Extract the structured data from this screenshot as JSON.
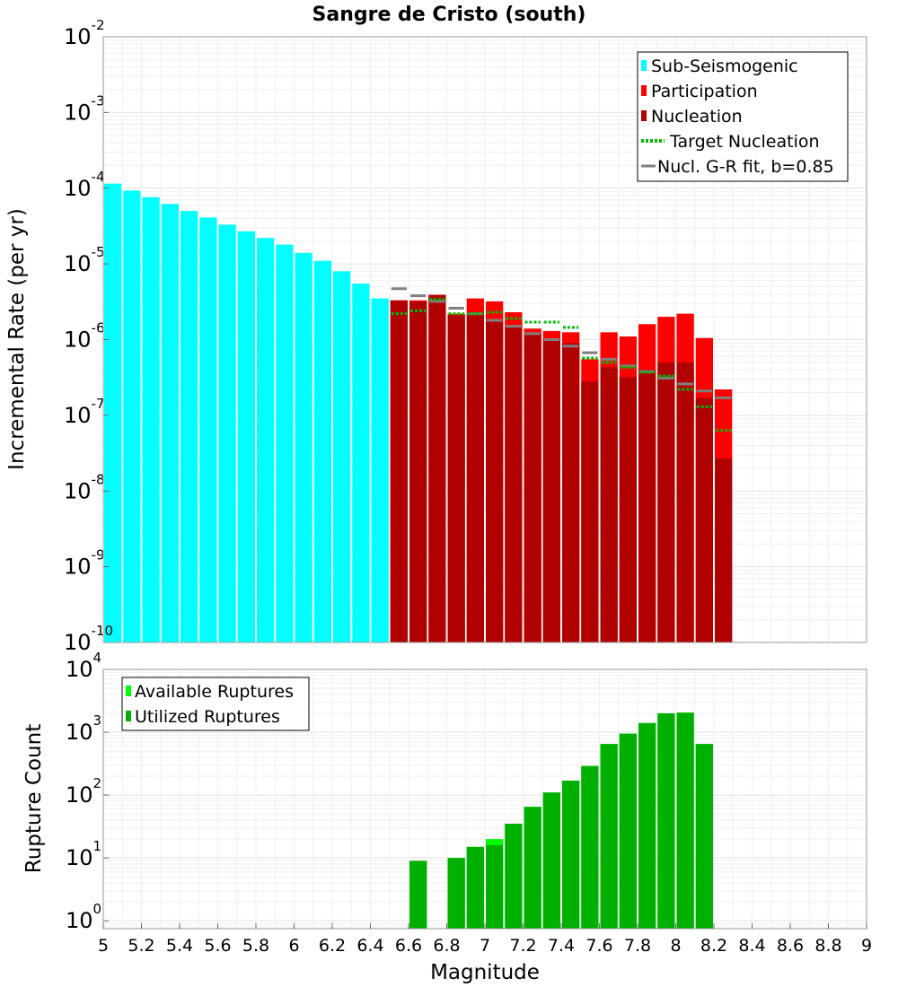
{
  "chart_data": [
    {
      "type": "bar",
      "title": "Sangre de Cristo (south)",
      "xlabel": "",
      "ylabel": "Incremental Rate (per yr)",
      "xlim": [
        5,
        9
      ],
      "ylim": [
        1e-10,
        0.01
      ],
      "yscale": "log",
      "grid": true,
      "legend_position": "top-right",
      "y_tick_labels": [
        "10-10",
        "10-9",
        "10-8",
        "10-7",
        "10-6",
        "10-5",
        "10-4",
        "10-3",
        "10-2"
      ],
      "bin_width": 0.1,
      "series": [
        {
          "name": "Sub-Seismogenic",
          "color": "#00ffff",
          "x": [
            5.05,
            5.15,
            5.25,
            5.35,
            5.45,
            5.55,
            5.65,
            5.75,
            5.85,
            5.95,
            6.05,
            6.15,
            6.25,
            6.35,
            6.45
          ],
          "values": [
            0.000115,
            9.3e-05,
            7.6e-05,
            6.2e-05,
            5e-05,
            4.1e-05,
            3.3e-05,
            2.7e-05,
            2.2e-05,
            1.8e-05,
            1.4e-05,
            1.1e-05,
            8e-06,
            5.5e-06,
            3.5e-06
          ]
        },
        {
          "name": "Participation",
          "color": "#ff0000",
          "x": [
            6.55,
            6.65,
            6.75,
            6.85,
            6.95,
            7.05,
            7.15,
            7.25,
            7.35,
            7.45,
            7.55,
            7.65,
            7.75,
            7.85,
            7.95,
            8.05,
            8.15,
            8.25
          ],
          "values": [
            3.3e-06,
            3.3e-06,
            3.9e-06,
            2.2e-06,
            3.5e-06,
            3.2e-06,
            2.3e-06,
            1.4e-06,
            1.3e-06,
            1.25e-06,
            5.5e-07,
            1.25e-06,
            1.1e-06,
            1.6e-06,
            2e-06,
            2.2e-06,
            1.05e-06,
            2.2e-07
          ]
        },
        {
          "name": "Nucleation",
          "color": "#b00000",
          "x": [
            6.55,
            6.65,
            6.75,
            6.85,
            6.95,
            7.05,
            7.15,
            7.25,
            7.35,
            7.45,
            7.55,
            7.65,
            7.75,
            7.85,
            7.95,
            8.05,
            8.15,
            8.25
          ],
          "values": [
            3.3e-06,
            3.2e-06,
            3.9e-06,
            2.1e-06,
            2.1e-06,
            1.8e-06,
            1.5e-06,
            1.2e-06,
            1e-06,
            9e-07,
            2.8e-07,
            4.3e-07,
            3.2e-07,
            4e-07,
            5e-07,
            5e-07,
            1.7e-07,
            2.7e-08
          ]
        },
        {
          "name": "Target Nucleation",
          "color": "#00bb00",
          "style": "dotted",
          "x": [
            6.55,
            6.65,
            6.75,
            6.85,
            6.95,
            7.05,
            7.15,
            7.25,
            7.35,
            7.45,
            7.55,
            7.65,
            7.75,
            7.85,
            7.95,
            8.05,
            8.15,
            8.25
          ],
          "values": [
            2.2e-06,
            2.4e-06,
            3.4e-06,
            2.2e-06,
            2.2e-06,
            2.3e-06,
            1.9e-06,
            1.7e-06,
            1.7e-06,
            1.45e-06,
            5.7e-07,
            5e-07,
            4.3e-07,
            3.7e-07,
            3.3e-07,
            2.2e-07,
            1.3e-07,
            6.3e-08
          ]
        },
        {
          "name": "Nucl. G-R fit, b=0.85",
          "color": "#808080",
          "x": [
            6.55,
            6.65,
            6.75,
            6.85,
            6.95,
            7.05,
            7.15,
            7.25,
            7.35,
            7.45,
            7.55,
            7.65,
            7.75,
            7.85,
            7.95,
            8.05,
            8.15,
            8.25
          ],
          "values": [
            4.7e-06,
            3.8e-06,
            3.2e-06,
            2.6e-06,
            2.2e-06,
            1.8e-06,
            1.5e-06,
            1.2e-06,
            1e-06,
            8.2e-07,
            6.7e-07,
            5.5e-07,
            4.5e-07,
            3.8e-07,
            3.1e-07,
            2.6e-07,
            2.1e-07,
            1.7e-07
          ]
        }
      ]
    },
    {
      "type": "bar",
      "xlabel": "Magnitude",
      "ylabel": "Rupture Count",
      "xlim": [
        5,
        9
      ],
      "ylim": [
        0.75,
        10000
      ],
      "yscale": "log",
      "grid": true,
      "legend_position": "top-left",
      "y_tick_labels": [
        "100",
        "101",
        "102",
        "103",
        "104"
      ],
      "x_tick_labels": [
        "5",
        "5.2",
        "5.4",
        "5.6",
        "5.8",
        "6",
        "6.2",
        "6.4",
        "6.6",
        "6.8",
        "7",
        "7.2",
        "7.4",
        "7.6",
        "7.8",
        "8",
        "8.2",
        "8.4",
        "8.6",
        "8.8",
        "9"
      ],
      "bin_width": 0.1,
      "series": [
        {
          "name": "Available Ruptures",
          "color": "#00ff00",
          "x": [
            6.65,
            6.85,
            6.95,
            7.05,
            7.15,
            7.25,
            7.35,
            7.45,
            7.55,
            7.65,
            7.75,
            7.85,
            7.95,
            8.05,
            8.15
          ],
          "values": [
            9,
            10,
            15,
            20,
            35,
            65,
            110,
            170,
            290,
            650,
            950,
            1400,
            2000,
            2050,
            650
          ]
        },
        {
          "name": "Utilized Ruptures",
          "color": "#00b000",
          "x": [
            6.65,
            6.85,
            6.95,
            7.05,
            7.15,
            7.25,
            7.35,
            7.45,
            7.55,
            7.65,
            7.75,
            7.85,
            7.95,
            8.05,
            8.15
          ],
          "values": [
            9,
            10,
            15,
            16,
            35,
            65,
            110,
            170,
            290,
            650,
            950,
            1400,
            2000,
            2050,
            650
          ]
        }
      ]
    }
  ]
}
